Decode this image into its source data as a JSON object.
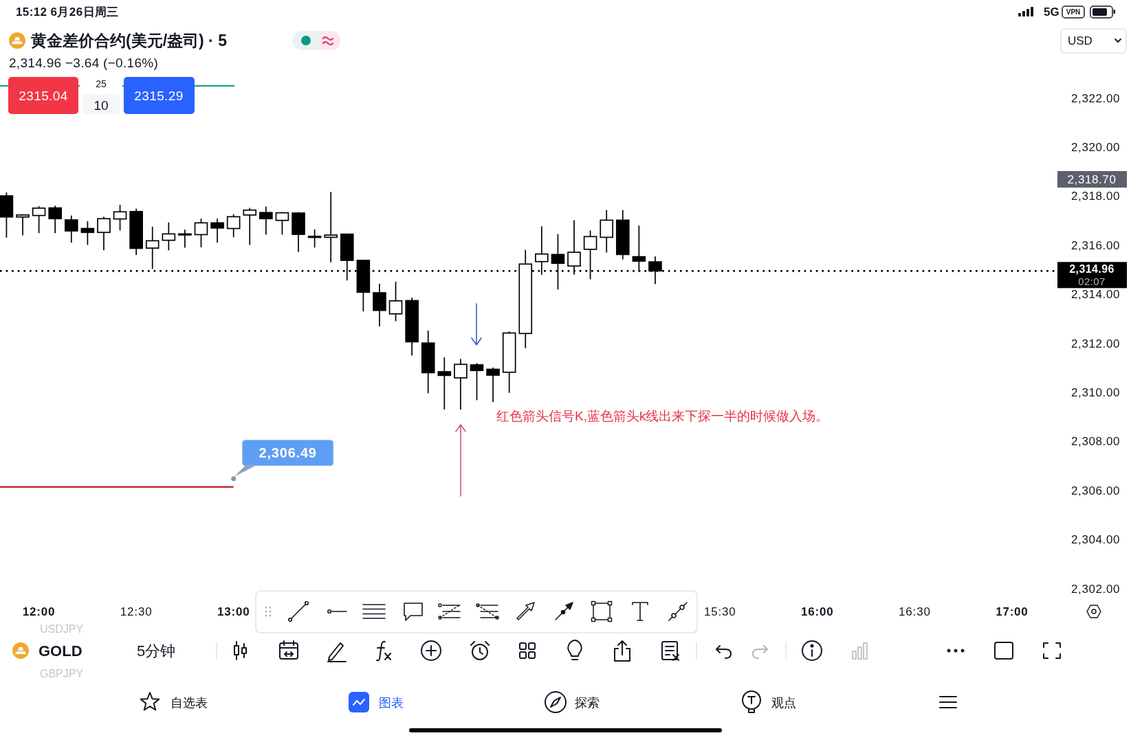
{
  "chart_data": {
    "type": "candlestick",
    "title": "黄金差价合约(美元/盎司) · 5",
    "x": [
      11.8333,
      11.9167,
      12,
      12.0833,
      12.1667,
      12.25,
      12.3333,
      12.4167,
      12.5,
      12.5833,
      12.6667,
      12.75,
      12.8333,
      12.9167,
      13,
      13.0833,
      13.1667,
      13.25,
      13.3333,
      13.4167,
      13.5,
      13.5833,
      13.6667,
      13.75,
      13.8333,
      13.9167,
      14,
      14.0833,
      14.1667,
      14.25,
      14.3333,
      14.4167,
      14.5,
      14.5833,
      14.6667,
      14.75,
      14.8333,
      14.9167,
      15,
      15.0833,
      15.1667
    ],
    "ohlc": [
      [
        2318.02,
        2318.16,
        2316.32,
        2317.16
      ],
      [
        2317.16,
        2317.27,
        2316.41,
        2317.24
      ],
      [
        2317.22,
        2317.6,
        2316.5,
        2317.52
      ],
      [
        2317.53,
        2317.62,
        2316.5,
        2317.09
      ],
      [
        2317.04,
        2317.22,
        2316.11,
        2316.59
      ],
      [
        2316.69,
        2316.99,
        2316.02,
        2316.53
      ],
      [
        2316.53,
        2317.17,
        2315.8,
        2317.09
      ],
      [
        2317.08,
        2317.65,
        2316.61,
        2317.37
      ],
      [
        2317.38,
        2317.5,
        2315.61,
        2315.88
      ],
      [
        2315.89,
        2316.76,
        2315.04,
        2316.19
      ],
      [
        2316.21,
        2316.94,
        2315.8,
        2316.47
      ],
      [
        2316.47,
        2316.64,
        2315.91,
        2316.47
      ],
      [
        2316.44,
        2317.09,
        2315.92,
        2316.92
      ],
      [
        2316.92,
        2317.09,
        2316.11,
        2316.71
      ],
      [
        2316.69,
        2317.27,
        2316.33,
        2317.17
      ],
      [
        2317.24,
        2317.53,
        2316.02,
        2317.44
      ],
      [
        2317.34,
        2317.58,
        2316.44,
        2317.09
      ],
      [
        2317.02,
        2317.36,
        2316.44,
        2317.33
      ],
      [
        2317.32,
        2317.36,
        2315.73,
        2316.45
      ],
      [
        2316.37,
        2316.65,
        2315.91,
        2316.37
      ],
      [
        2316.33,
        2318.18,
        2315.31,
        2316.42
      ],
      [
        2316.46,
        2316.46,
        2314.57,
        2315.39
      ],
      [
        2315.39,
        2315.39,
        2313.31,
        2314.09
      ],
      [
        2314.07,
        2314.44,
        2312.7,
        2313.35
      ],
      [
        2313.21,
        2314.52,
        2312.91,
        2313.74
      ],
      [
        2313.75,
        2313.87,
        2311.51,
        2312.07
      ],
      [
        2312.02,
        2312.53,
        2309.97,
        2310.81
      ],
      [
        2310.85,
        2311.44,
        2309.31,
        2310.7
      ],
      [
        2310.6,
        2311.37,
        2309.31,
        2311.15
      ],
      [
        2311.13,
        2311.2,
        2309.69,
        2310.9
      ],
      [
        2310.95,
        2311.02,
        2309.62,
        2310.71
      ],
      [
        2310.83,
        2312.49,
        2309.99,
        2312.43
      ],
      [
        2312.41,
        2315.82,
        2311.81,
        2315.24
      ],
      [
        2315.34,
        2316.78,
        2314.8,
        2315.65
      ],
      [
        2315.63,
        2316.46,
        2314.2,
        2315.27
      ],
      [
        2315.16,
        2317.03,
        2314.81,
        2315.72
      ],
      [
        2315.84,
        2316.61,
        2314.62,
        2316.36
      ],
      [
        2316.33,
        2317.44,
        2315.71,
        2317.03
      ],
      [
        2317.03,
        2317.44,
        2315.43,
        2315.63
      ],
      [
        2315.54,
        2316.81,
        2314.93,
        2315.36
      ],
      [
        2315.33,
        2315.55,
        2314.42,
        2314.96
      ]
    ],
    "color": "#000000",
    "colors": [
      "#000000",
      "#ffffff",
      "#ffffff",
      "#000000",
      "#000000",
      "#000000",
      "#ffffff",
      "#ffffff",
      "#000000",
      "#ffffff",
      "#ffffff",
      "#000000",
      "#ffffff",
      "#000000",
      "#ffffff",
      "#ffffff",
      "#000000",
      "#ffffff",
      "#000000",
      "#000000",
      "#ffffff",
      "#000000",
      "#000000",
      "#000000",
      "#ffffff",
      "#000000",
      "#000000",
      "#000000",
      "#ffffff",
      "#000000",
      "#000000",
      "#ffffff",
      "#ffffff",
      "#ffffff",
      "#000000",
      "#ffffff",
      "#ffffff",
      "#ffffff",
      "#000000",
      "#000000",
      "#000000"
    ],
    "series": [
      {
        "type": "line",
        "x": [
          11.8,
          13
        ],
        "values": [
          2306.15,
          2306.15
        ],
        "color": "#c2303a"
      }
    ],
    "xlim": [
      11.8,
      17.23
    ],
    "xticks": [
      {
        "value": 12,
        "label": "12:00"
      },
      {
        "value": 12.5,
        "label": "12:30"
      },
      {
        "value": 13,
        "label": "13:00"
      },
      {
        "value": 15.5,
        "label": "15:30"
      },
      {
        "value": 16,
        "label": "16:00"
      },
      {
        "value": 16.5,
        "label": "16:30"
      },
      {
        "value": 17,
        "label": "17:00"
      }
    ],
    "ylim": [
      2302,
      2322
    ],
    "yticks": [
      {
        "value": 2302,
        "label": "2,302.00"
      },
      {
        "value": 2304,
        "label": "2,304.00"
      },
      {
        "value": 2306,
        "label": "2,306.00"
      },
      {
        "value": 2308,
        "label": "2,308.00"
      },
      {
        "value": 2310,
        "label": "2,310.00"
      },
      {
        "value": 2312,
        "label": "2,312.00"
      },
      {
        "value": 2314,
        "label": "2,314.00"
      },
      {
        "value": 2316,
        "label": "2,316.00"
      },
      {
        "value": 2318,
        "label": "2,318.00"
      },
      {
        "value": 2320,
        "label": "2,320.00"
      },
      {
        "value": 2322,
        "label": "2,322.00"
      }
    ],
    "ref_lines": [
      {
        "axis": "y",
        "value": 2314.96,
        "label": "2,314.96",
        "line_style": "dotted",
        "color": "#000000"
      }
    ],
    "annotations": [
      "15:12 6月26日周三",
      "5G",
      "VPN",
      "USD",
      "2,314.96 −3.64 (−0.16%)",
      "2315.04",
      "25",
      "10",
      "2315.29",
      "02:07",
      "2,318.70",
      {
        "text": "2,306.49",
        "x": 13,
        "y": 2306.49
      },
      "红色箭头信号K,蓝色箭头k线出来下探一半的时候做入场。",
      "GOLD",
      "5分钟",
      "USDJPY",
      "GBPJPY",
      "自选表",
      "图表",
      "探索",
      "观点"
    ]
  }
}
